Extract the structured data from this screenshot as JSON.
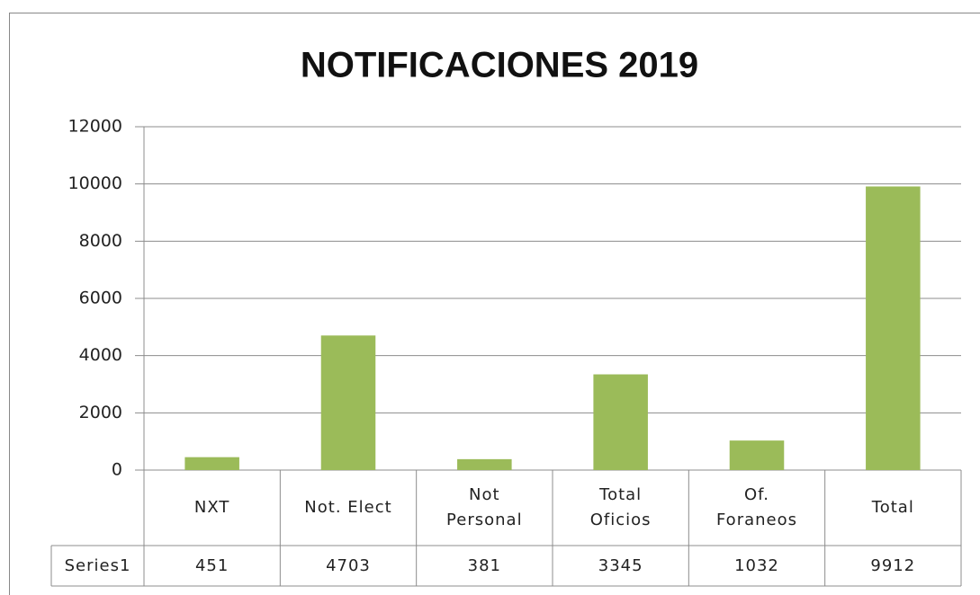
{
  "chart_data": {
    "type": "bar",
    "title": "NOTIFICACIONES 2019",
    "categories": [
      "NXT",
      "Not. Elect",
      "Not\nPersonal",
      "Total\nOficios",
      "Of.\nForaneos",
      "Total"
    ],
    "series": [
      {
        "name": "Series1",
        "color": "#9bbb59",
        "values": [
          451,
          4703,
          381,
          3345,
          1032,
          9912
        ]
      }
    ],
    "ylim": [
      0,
      12000
    ],
    "yticks": [
      0,
      2000,
      4000,
      6000,
      8000,
      10000,
      12000
    ],
    "grid": true,
    "data_table": true
  }
}
